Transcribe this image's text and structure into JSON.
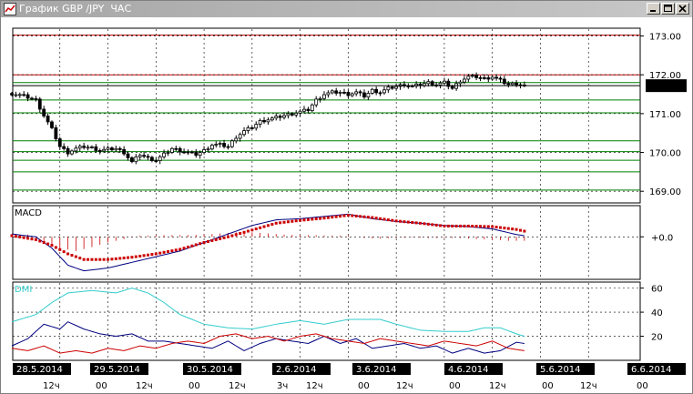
{
  "window": {
    "title": "График GBP /JPY  ЧАС"
  },
  "colors": {
    "resistance": "#cc0000",
    "support": "#008000",
    "candle": "#000000",
    "macd_line": "#000080",
    "macd_signal": "#cc0000",
    "macd_hist": "#cc0000",
    "dmi_adx": "#33cccc",
    "dmi_plus": "#000080",
    "dmi_minus": "#cc0000",
    "date_bg": "#000000",
    "grid": "#000000"
  },
  "icons": {
    "app": "chart-app-icon",
    "minimize": "minimize-icon",
    "maximize": "maximize-icon",
    "close": "close-icon"
  },
  "price_panel": {
    "y_ticks": [
      "173.00",
      "172.00",
      "171.00",
      "170.00",
      "169.00"
    ],
    "current_price": "171.72",
    "ylim": [
      168.7,
      173.2
    ],
    "resistance_levels": [
      173.02,
      172.0
    ],
    "support_levels": [
      171.8,
      171.35,
      171.02,
      170.3,
      170.02,
      169.8,
      169.5,
      169.03
    ]
  },
  "macd_panel": {
    "title": "MACD",
    "zero_label": "+0.0"
  },
  "dmi_panel": {
    "title": "DMI",
    "y_ticks": [
      "60",
      "40",
      "20"
    ],
    "ylim": [
      0,
      65
    ]
  },
  "time_axis": {
    "dates": [
      "28.5.2014",
      "29.5.2014",
      "30.5.2014",
      "2.6.2014",
      "3.6.2014",
      "4.6.2014",
      "5.6.2014",
      "6.6.2014"
    ],
    "hour_labels": [
      {
        "text": "12ч"
      },
      {
        "text": "00"
      },
      {
        "text": "12ч"
      },
      {
        "text": "00"
      },
      {
        "text": "12ч"
      },
      {
        "text": "3ч"
      },
      {
        "text": "12ч"
      },
      {
        "text": "00"
      },
      {
        "text": "12ч"
      },
      {
        "text": "00"
      },
      {
        "text": "12ч"
      },
      {
        "text": "00"
      },
      {
        "text": "12ч"
      },
      {
        "text": "00"
      }
    ]
  },
  "chart_data": {
    "type": "candlestick",
    "title": "График GBP /JPY  ЧАС",
    "instrument": "GBP/JPY",
    "timeframe": "ЧАС",
    "x_range": [
      "28.5.2014",
      "6.6.2014"
    ],
    "ylim": [
      168.7,
      173.2
    ],
    "close_path": [
      [
        0,
        171.52
      ],
      [
        2,
        171.48
      ],
      [
        4,
        171.42
      ],
      [
        6,
        171.35
      ],
      [
        8,
        170.95
      ],
      [
        10,
        170.6
      ],
      [
        12,
        170.15
      ],
      [
        14,
        170.0
      ],
      [
        16,
        170.1
      ],
      [
        18,
        170.15
      ],
      [
        20,
        170.12
      ],
      [
        22,
        170.05
      ],
      [
        24,
        170.08
      ],
      [
        26,
        170.1
      ],
      [
        28,
        170.0
      ],
      [
        30,
        169.75
      ],
      [
        32,
        169.95
      ],
      [
        34,
        169.85
      ],
      [
        36,
        169.8
      ],
      [
        38,
        169.95
      ],
      [
        40,
        170.1
      ],
      [
        42,
        170.05
      ],
      [
        44,
        170.0
      ],
      [
        46,
        169.95
      ],
      [
        48,
        170.05
      ],
      [
        50,
        170.2
      ],
      [
        52,
        170.2
      ],
      [
        54,
        170.15
      ],
      [
        56,
        170.4
      ],
      [
        58,
        170.55
      ],
      [
        60,
        170.65
      ],
      [
        62,
        170.8
      ],
      [
        64,
        170.85
      ],
      [
        66,
        170.9
      ],
      [
        68,
        170.95
      ],
      [
        70,
        171.0
      ],
      [
        72,
        171.05
      ],
      [
        74,
        171.1
      ],
      [
        76,
        171.35
      ],
      [
        78,
        171.5
      ],
      [
        80,
        171.55
      ],
      [
        82,
        171.55
      ],
      [
        84,
        171.5
      ],
      [
        86,
        171.55
      ],
      [
        88,
        171.45
      ],
      [
        90,
        171.6
      ],
      [
        92,
        171.55
      ],
      [
        94,
        171.65
      ],
      [
        96,
        171.7
      ],
      [
        98,
        171.75
      ],
      [
        100,
        171.7
      ],
      [
        102,
        171.75
      ],
      [
        104,
        171.8
      ],
      [
        106,
        171.75
      ],
      [
        108,
        171.8
      ],
      [
        110,
        171.65
      ],
      [
        112,
        171.85
      ],
      [
        114,
        171.95
      ],
      [
        116,
        171.95
      ],
      [
        118,
        171.9
      ],
      [
        120,
        171.95
      ],
      [
        122,
        171.85
      ],
      [
        124,
        171.75
      ],
      [
        126,
        171.78
      ],
      [
        128,
        171.72
      ]
    ],
    "macd": {
      "line": [
        [
          0,
          0.05
        ],
        [
          6,
          0.0
        ],
        [
          10,
          -0.2
        ],
        [
          14,
          -0.5
        ],
        [
          18,
          -0.6
        ],
        [
          24,
          -0.55
        ],
        [
          30,
          -0.45
        ],
        [
          36,
          -0.35
        ],
        [
          42,
          -0.25
        ],
        [
          48,
          -0.1
        ],
        [
          54,
          0.05
        ],
        [
          60,
          0.2
        ],
        [
          66,
          0.3
        ],
        [
          72,
          0.32
        ],
        [
          78,
          0.36
        ],
        [
          84,
          0.4
        ],
        [
          90,
          0.32
        ],
        [
          96,
          0.27
        ],
        [
          102,
          0.24
        ],
        [
          108,
          0.2
        ],
        [
          114,
          0.18
        ],
        [
          120,
          0.14
        ],
        [
          126,
          0.04
        ],
        [
          128,
          0.02
        ]
      ],
      "signal": [
        [
          0,
          0.02
        ],
        [
          6,
          -0.05
        ],
        [
          10,
          -0.15
        ],
        [
          14,
          -0.3
        ],
        [
          18,
          -0.4
        ],
        [
          24,
          -0.4
        ],
        [
          30,
          -0.36
        ],
        [
          36,
          -0.3
        ],
        [
          42,
          -0.22
        ],
        [
          48,
          -0.1
        ],
        [
          54,
          0.0
        ],
        [
          60,
          0.12
        ],
        [
          66,
          0.24
        ],
        [
          72,
          0.29
        ],
        [
          78,
          0.33
        ],
        [
          84,
          0.38
        ],
        [
          90,
          0.34
        ],
        [
          96,
          0.28
        ],
        [
          102,
          0.24
        ],
        [
          108,
          0.19
        ],
        [
          114,
          0.19
        ],
        [
          120,
          0.18
        ],
        [
          126,
          0.13
        ],
        [
          128,
          0.1
        ]
      ],
      "histogram": [
        [
          0,
          0.04
        ],
        [
          4,
          0.04
        ],
        [
          8,
          -0.08
        ],
        [
          12,
          -0.2
        ],
        [
          16,
          -0.25
        ],
        [
          20,
          -0.18
        ],
        [
          24,
          -0.1
        ],
        [
          28,
          -0.04
        ],
        [
          32,
          0.02
        ],
        [
          36,
          0.03
        ],
        [
          40,
          0.03
        ],
        [
          44,
          0.03
        ],
        [
          48,
          0.04
        ],
        [
          52,
          0.06
        ],
        [
          56,
          0.08
        ],
        [
          60,
          0.08
        ],
        [
          64,
          0.06
        ],
        [
          68,
          0.04
        ],
        [
          72,
          0.03
        ],
        [
          76,
          0.03
        ],
        [
          80,
          0.02
        ],
        [
          84,
          0.02
        ],
        [
          88,
          -0.02
        ],
        [
          92,
          -0.03
        ],
        [
          96,
          -0.02
        ],
        [
          100,
          -0.01
        ],
        [
          104,
          -0.02
        ],
        [
          108,
          -0.02
        ],
        [
          112,
          -0.02
        ],
        [
          116,
          -0.04
        ],
        [
          120,
          -0.05
        ],
        [
          124,
          -0.07
        ],
        [
          128,
          -0.07
        ]
      ]
    },
    "dmi": {
      "adx": [
        [
          0,
          32
        ],
        [
          6,
          38
        ],
        [
          10,
          48
        ],
        [
          14,
          56
        ],
        [
          20,
          58
        ],
        [
          26,
          56
        ],
        [
          30,
          60
        ],
        [
          34,
          56
        ],
        [
          38,
          48
        ],
        [
          42,
          38
        ],
        [
          48,
          30
        ],
        [
          54,
          27
        ],
        [
          60,
          26
        ],
        [
          66,
          30
        ],
        [
          72,
          33
        ],
        [
          78,
          30
        ],
        [
          84,
          34
        ],
        [
          88,
          34
        ],
        [
          92,
          34
        ],
        [
          96,
          30
        ],
        [
          102,
          25
        ],
        [
          108,
          24
        ],
        [
          114,
          24
        ],
        [
          118,
          27
        ],
        [
          122,
          27
        ],
        [
          126,
          22
        ],
        [
          128,
          20
        ]
      ],
      "plus_di": [
        [
          0,
          12
        ],
        [
          4,
          18
        ],
        [
          8,
          30
        ],
        [
          12,
          26
        ],
        [
          14,
          32
        ],
        [
          18,
          26
        ],
        [
          22,
          22
        ],
        [
          26,
          20
        ],
        [
          30,
          22
        ],
        [
          34,
          16
        ],
        [
          38,
          16
        ],
        [
          42,
          14
        ],
        [
          46,
          12
        ],
        [
          50,
          10
        ],
        [
          54,
          16
        ],
        [
          58,
          8
        ],
        [
          62,
          14
        ],
        [
          66,
          18
        ],
        [
          70,
          16
        ],
        [
          74,
          14
        ],
        [
          78,
          20
        ],
        [
          82,
          14
        ],
        [
          86,
          18
        ],
        [
          90,
          10
        ],
        [
          94,
          12
        ],
        [
          98,
          14
        ],
        [
          102,
          10
        ],
        [
          106,
          12
        ],
        [
          110,
          6
        ],
        [
          114,
          10
        ],
        [
          118,
          6
        ],
        [
          122,
          8
        ],
        [
          126,
          15
        ],
        [
          128,
          14
        ]
      ],
      "minus_di": [
        [
          0,
          10
        ],
        [
          4,
          8
        ],
        [
          8,
          12
        ],
        [
          12,
          6
        ],
        [
          16,
          8
        ],
        [
          20,
          6
        ],
        [
          24,
          10
        ],
        [
          28,
          8
        ],
        [
          32,
          12
        ],
        [
          36,
          10
        ],
        [
          40,
          14
        ],
        [
          44,
          16
        ],
        [
          48,
          14
        ],
        [
          52,
          20
        ],
        [
          56,
          22
        ],
        [
          60,
          18
        ],
        [
          64,
          20
        ],
        [
          68,
          16
        ],
        [
          72,
          20
        ],
        [
          76,
          22
        ],
        [
          80,
          18
        ],
        [
          84,
          16
        ],
        [
          88,
          14
        ],
        [
          92,
          18
        ],
        [
          96,
          16
        ],
        [
          100,
          14
        ],
        [
          104,
          12
        ],
        [
          108,
          16
        ],
        [
          112,
          14
        ],
        [
          116,
          12
        ],
        [
          120,
          16
        ],
        [
          124,
          10
        ],
        [
          128,
          8
        ]
      ]
    }
  }
}
